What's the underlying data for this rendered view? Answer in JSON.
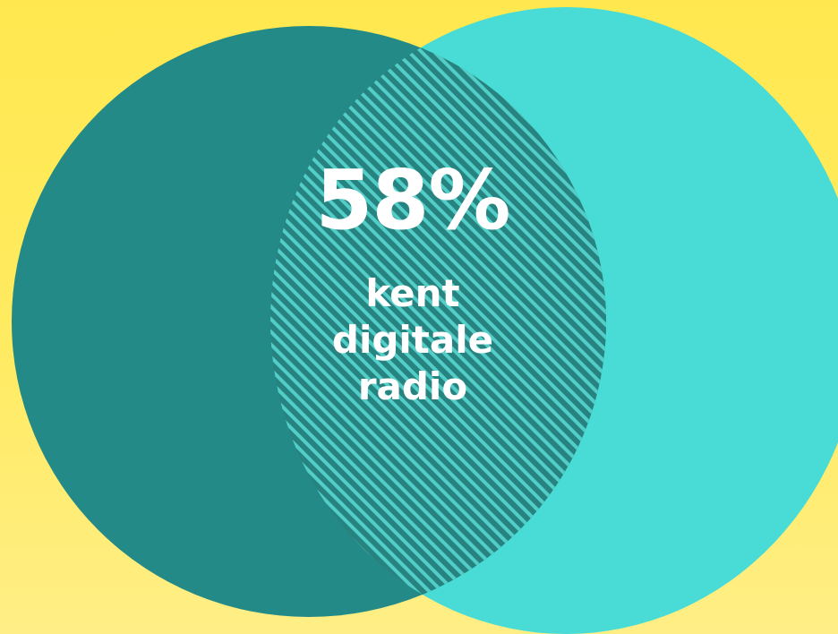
{
  "colors": {
    "background": "#FFE84F",
    "left_circle": "#238A87",
    "right_circle": "#49DBD6",
    "overlap_hatch_dark": "#27837F",
    "overlap_hatch_light": "#52CDC7",
    "text": "#FFFFFF"
  },
  "overlap": {
    "value": "58%",
    "caption_lines": [
      "kent",
      "digitale",
      "radio"
    ]
  }
}
